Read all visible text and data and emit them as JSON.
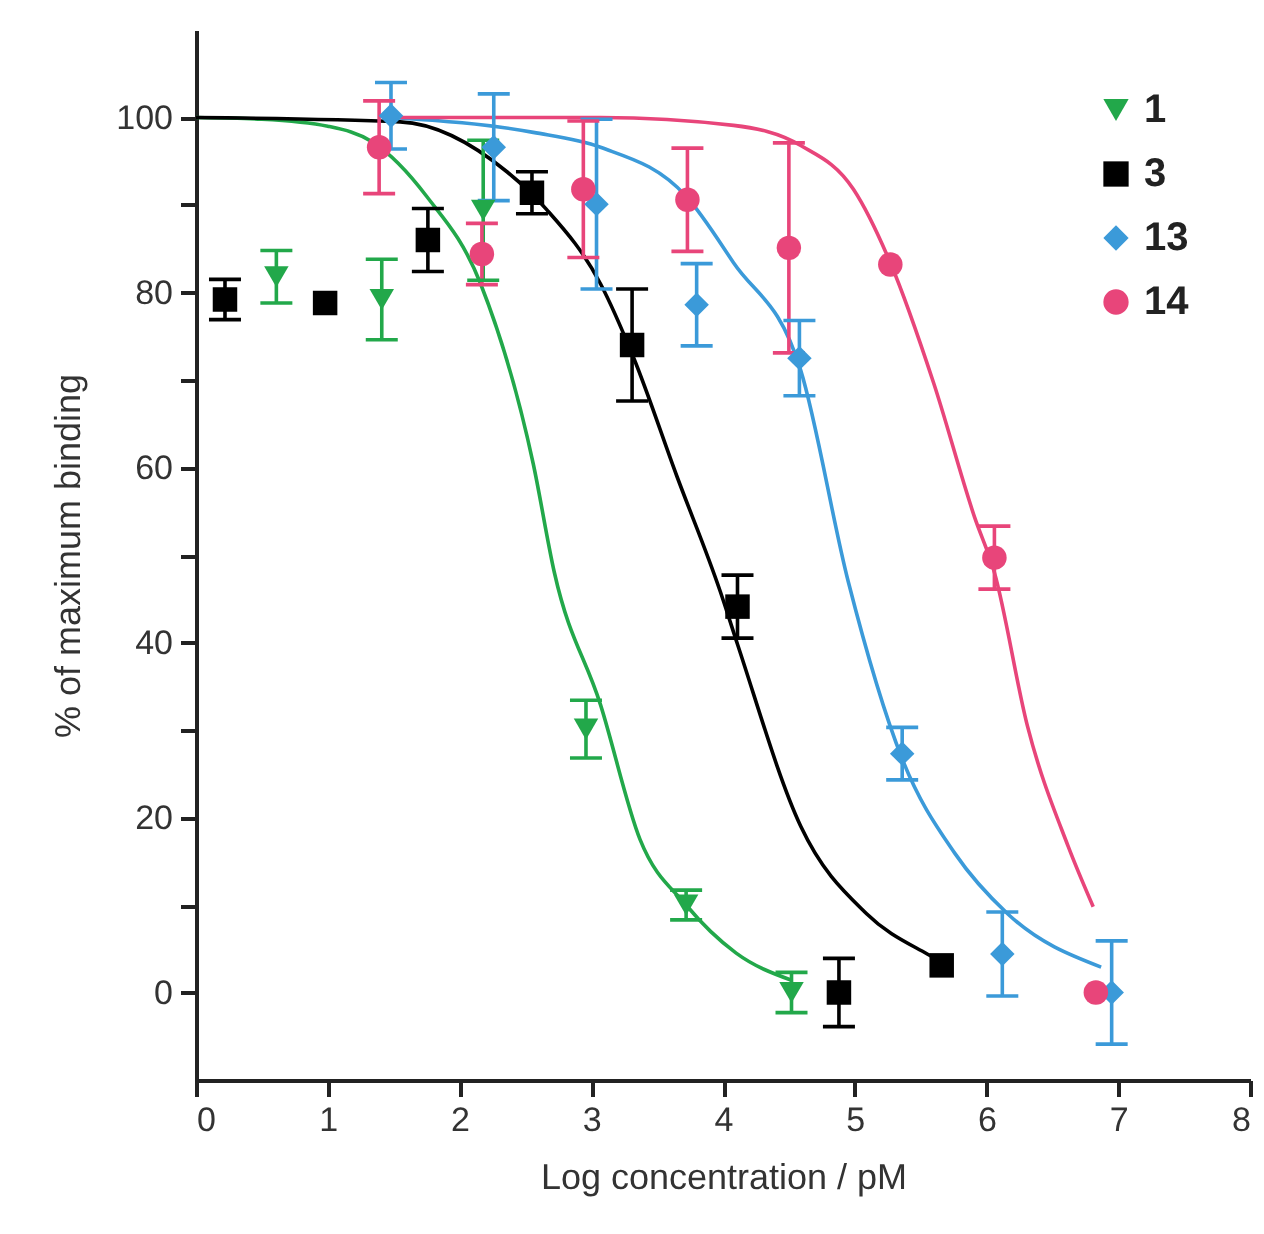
{
  "chart_data": {
    "type": "scatter",
    "xlabel": "Log concentration / pM",
    "ylabel": "% of maximum binding",
    "xlim": [
      0,
      8
    ],
    "xticks": [
      0,
      1,
      2,
      3,
      4,
      5,
      6,
      7,
      8
    ],
    "ylim": [
      -10,
      110
    ],
    "yticks": [
      0,
      {
        "value": 10,
        "label": null
      },
      20,
      {
        "value": 30,
        "label": null
      },
      40,
      {
        "value": 50,
        "label": null
      },
      60,
      {
        "value": 70,
        "label": null
      },
      80,
      {
        "value": 90,
        "label": null
      },
      100
    ],
    "grid": false,
    "legend": "top right",
    "series": [
      {
        "name": "1",
        "color": "#22a84a",
        "marker": "triangle-down",
        "x": [
          0.61,
          1.41,
          2.18,
          2.96,
          3.72,
          4.52
        ],
        "values": [
          81.8,
          79.2,
          89.4,
          30.1,
          10.0,
          0
        ],
        "errors": [
          3,
          4.6,
          8,
          3.3,
          1.7,
          2.3
        ]
      },
      {
        "name": "3",
        "color": "#000000",
        "marker": "square",
        "x": [
          0.22,
          0.98,
          1.76,
          2.55,
          3.31,
          4.11,
          4.88,
          5.66
        ],
        "values": [
          79.2,
          78.8,
          86.0,
          91.4,
          74.0,
          44.1,
          0,
          3.1
        ],
        "errors": [
          2.3,
          null,
          3.6,
          2.4,
          6.4,
          3.6,
          3.9,
          null
        ]
      },
      {
        "name": "13",
        "color": "#3b9ad9",
        "marker": "diamond",
        "x": [
          1.48,
          2.26,
          3.04,
          3.8,
          4.58,
          5.36,
          6.12,
          6.95
        ],
        "values": [
          100.2,
          96.6,
          90.1,
          78.6,
          72.5,
          27.3,
          4.4,
          0
        ],
        "errors": [
          3.8,
          6.1,
          9.7,
          4.7,
          4.3,
          3,
          4.8,
          5.9
        ]
      },
      {
        "name": "14",
        "color": "#e8457a",
        "marker": "circle",
        "x": [
          1.39,
          2.17,
          2.94,
          3.73,
          4.5,
          5.27,
          6.06,
          6.83
        ],
        "values": [
          96.6,
          84.4,
          91.8,
          90.6,
          85.1,
          83.2,
          49.7,
          0
        ],
        "errors": [
          5.3,
          3.5,
          7.8,
          5.9,
          12,
          null,
          3.6,
          null
        ]
      },
      {
        "type": "line",
        "color": "#22a84a",
        "x": [
          0,
          0.5,
          1.0,
          1.34,
          1.75,
          2.16,
          2.56,
          2.72,
          3.07,
          3.37,
          3.72,
          4.1,
          4.52
        ],
        "values": [
          100,
          99.8,
          99,
          97.2,
          91,
          81,
          60.4,
          48,
          32.9,
          17.5,
          10,
          4.5,
          1.4
        ]
      },
      {
        "type": "line",
        "color": "#000000",
        "x": [
          0,
          1.55,
          2.36,
          2.66,
          3.07,
          3.32,
          3.65,
          3.98,
          4.11,
          4.59,
          5.09,
          5.55,
          5.66
        ],
        "values": [
          100,
          99.5,
          93.8,
          89.5,
          81,
          72.6,
          59,
          45.8,
          39.8,
          19,
          9,
          4.4,
          3.5
        ]
      },
      {
        "type": "line",
        "color": "#3b9ad9",
        "x": [
          1.48,
          2.56,
          3.07,
          3.72,
          4.08,
          4.59,
          4.95,
          5.36,
          5.76,
          6.16,
          6.87
        ],
        "values": [
          100,
          98.3,
          96.6,
          91,
          83.4,
          71.1,
          47,
          26.7,
          15.9,
          9,
          2.9
        ]
      },
      {
        "type": "line",
        "color": "#e8457a",
        "x": [
          1.55,
          3.07,
          4.08,
          4.59,
          4.99,
          5.27,
          5.6,
          5.91,
          6.06,
          6.31,
          6.62,
          6.81
        ],
        "values": [
          100,
          100,
          99.1,
          96.8,
          91.8,
          83.4,
          69.6,
          54.3,
          48,
          30.5,
          16.7,
          9.8
        ]
      }
    ]
  }
}
